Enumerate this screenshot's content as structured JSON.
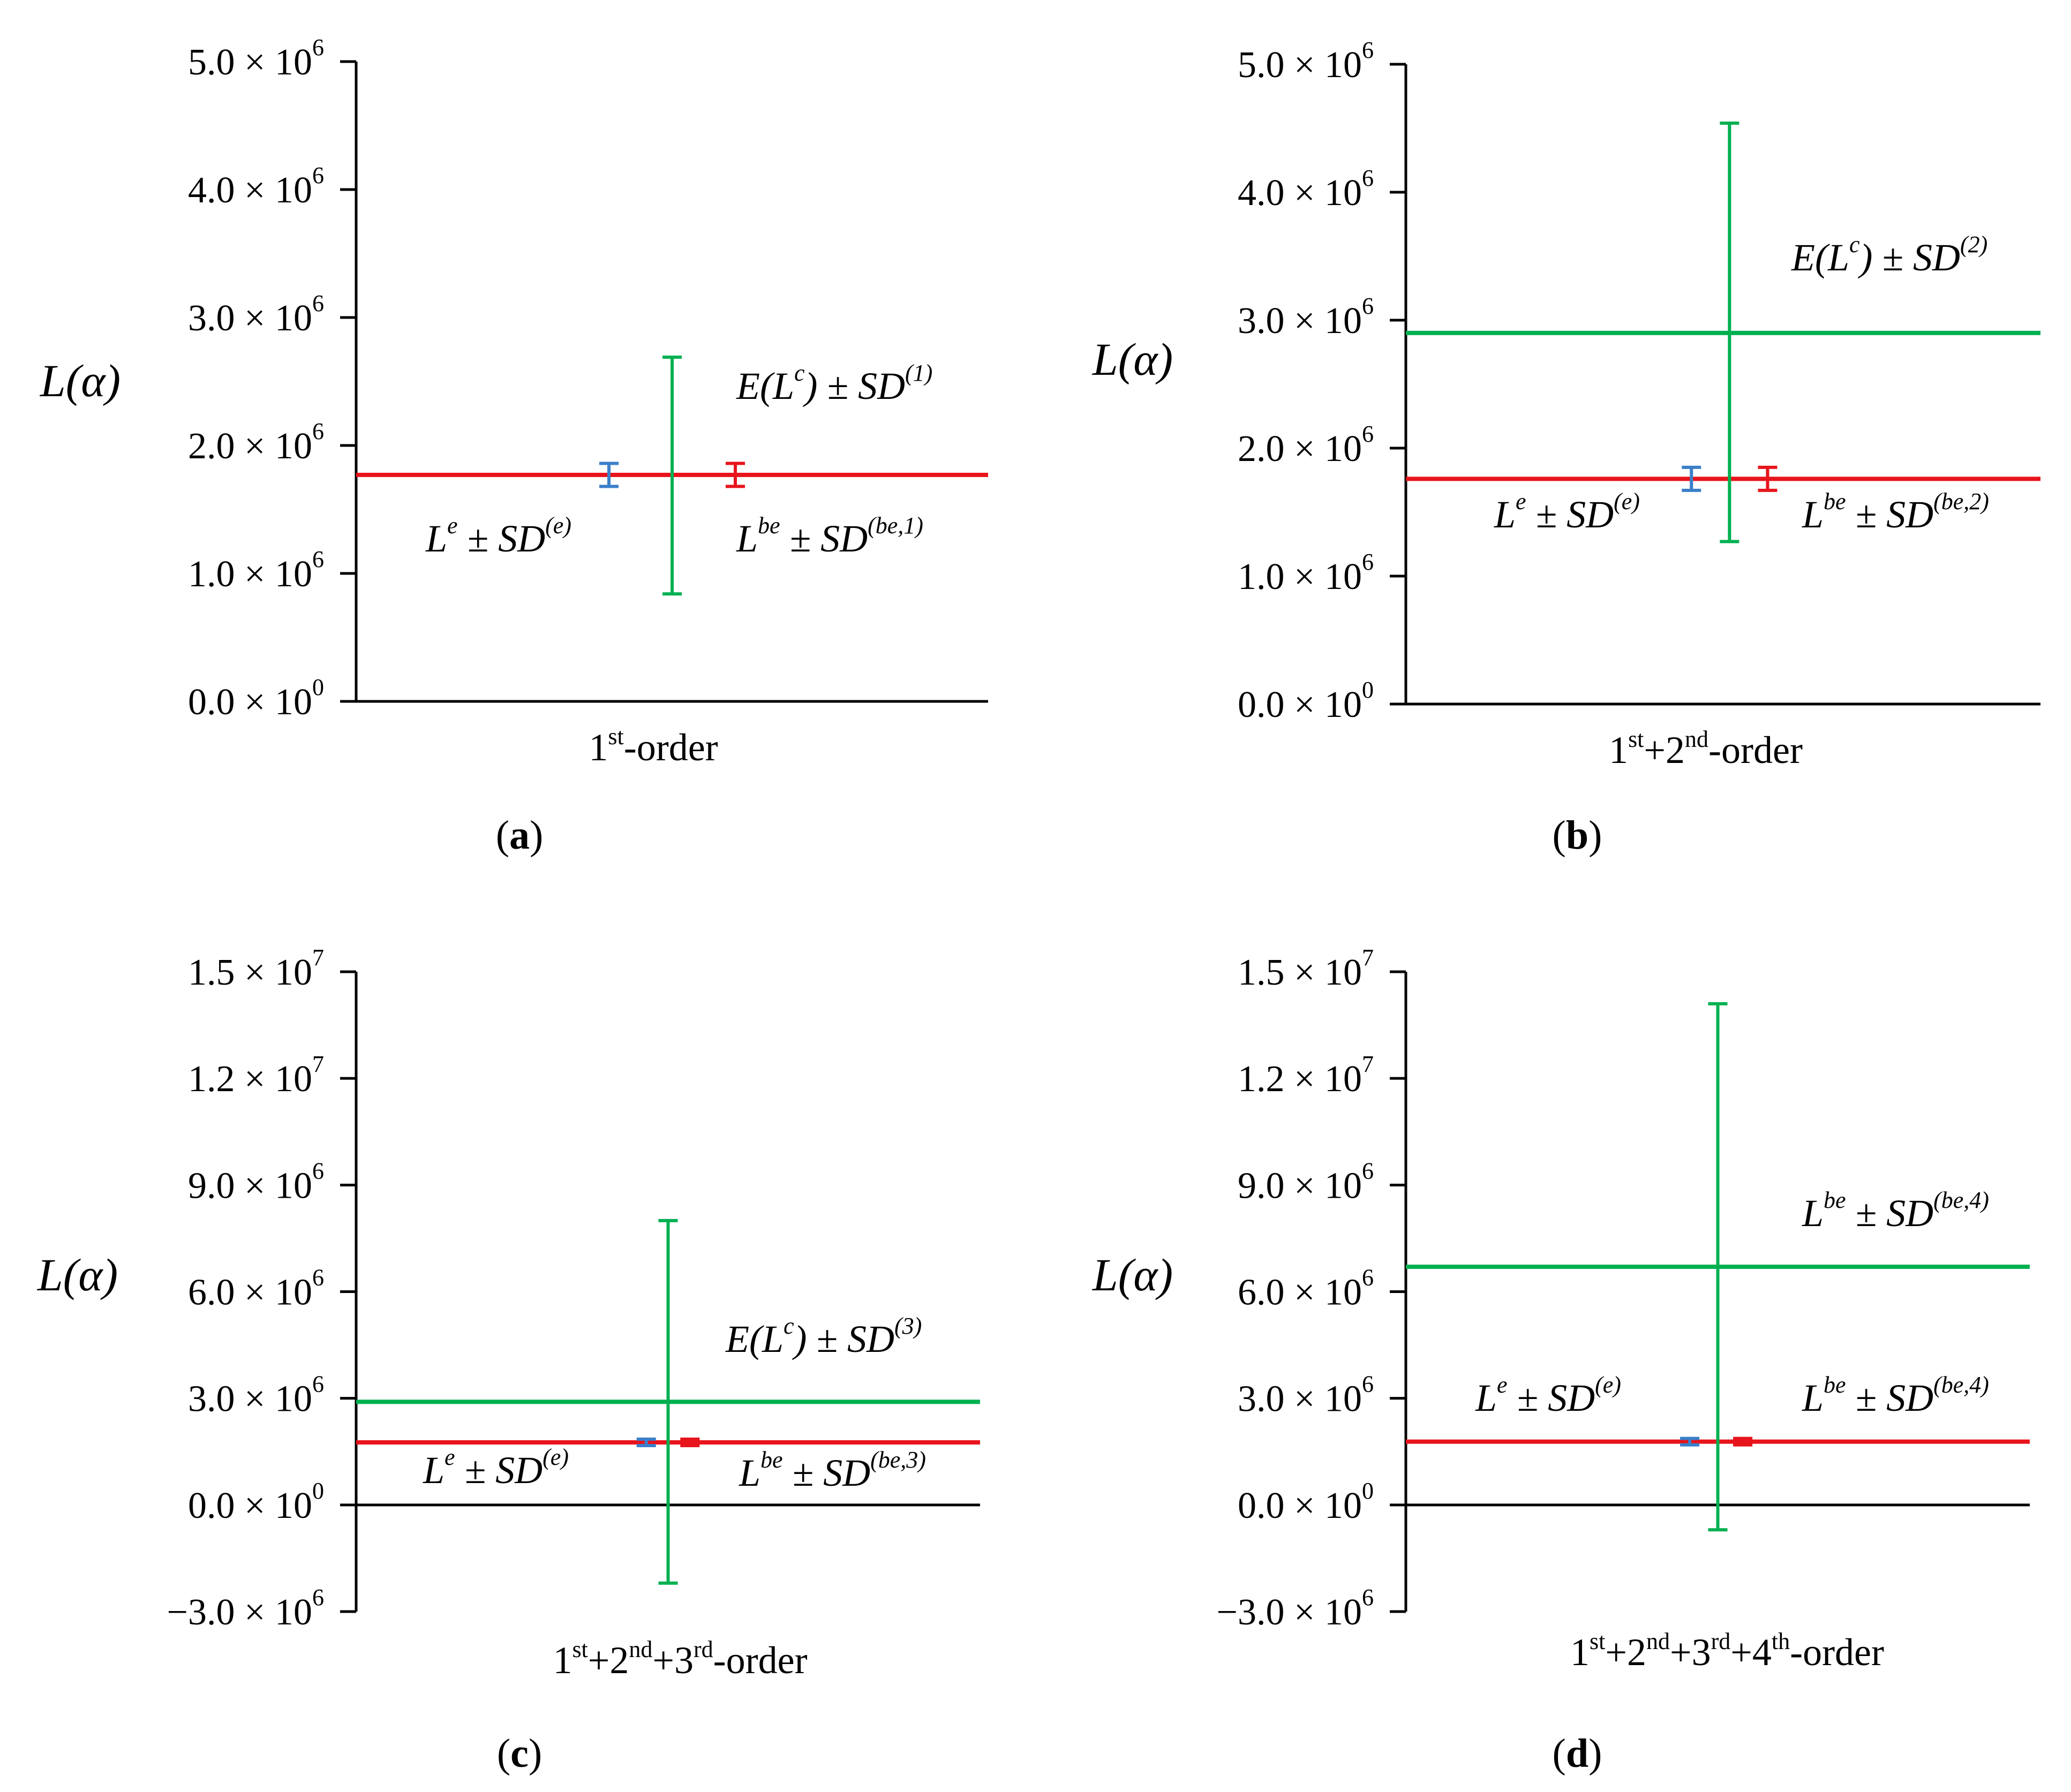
{
  "chart_data": [
    {
      "type": "errorbar",
      "panel_label": "(a)",
      "ylabel": "L(α)",
      "xlabel": "1st-order",
      "xlabel_parts": [
        [
          "1",
          ""
        ],
        [
          "st",
          "sup"
        ],
        [
          "-order",
          ""
        ]
      ],
      "ylim": [
        0,
        5000000
      ],
      "yticks": [
        {
          "value": 0,
          "mant": "0.0 × 10",
          "exp": "0"
        },
        {
          "value": 1000000,
          "mant": "1.0 × 10",
          "exp": "6"
        },
        {
          "value": 2000000,
          "mant": "2.0 × 10",
          "exp": "6"
        },
        {
          "value": 3000000,
          "mant": "3.0 × 10",
          "exp": "6"
        },
        {
          "value": 4000000,
          "mant": "4.0 × 10",
          "exp": "6"
        },
        {
          "value": 5000000,
          "mant": "5.0 × 10",
          "exp": "6"
        }
      ],
      "lines": [
        {
          "name": "E(L^c) ± SD^(1)",
          "color": "#00b050",
          "value": 1760000,
          "draw_line": false
        },
        {
          "name": "L^be ± SD^(be,1)",
          "color": "#e8141c",
          "value": 1770000,
          "draw_line": true
        }
      ],
      "errorbars": [
        {
          "name": "L^e ± SD^(e)",
          "color": "#3a7fc9",
          "mean": 1770000,
          "low": 1680000,
          "high": 1860000,
          "pos": 0.4
        },
        {
          "name": "E(L^c) ± SD^(1)",
          "color": "#00b050",
          "mean": 1760000,
          "low": 840000,
          "high": 2690000,
          "pos": 0.5
        },
        {
          "name": "L^be ± SD^(be,1)",
          "color": "#e8141c",
          "mean": 1770000,
          "low": 1680000,
          "high": 1860000,
          "pos": 0.6
        }
      ],
      "annotations": [
        {
          "text": "E(L^c) ± SD^(1)",
          "base": "E(L",
          "sup1": "c",
          "mid": ") ± SD",
          "sup2": "(1)"
        },
        {
          "text": "L^e ± SD^(e)",
          "base": "L",
          "sup1": "e",
          "mid": " ± SD",
          "sup2": "(e)"
        },
        {
          "text": "L^be ± SD^(be,1)",
          "base": "L",
          "sup1": "be",
          "mid": " ± SD",
          "sup2": "(be,1)"
        }
      ]
    },
    {
      "type": "errorbar",
      "panel_label": "(b)",
      "ylabel": "L(α)",
      "xlabel": "1st+2nd-order",
      "xlabel_parts": [
        [
          "1",
          ""
        ],
        [
          "st",
          "sup"
        ],
        [
          "+2",
          ""
        ],
        [
          "nd",
          "sup"
        ],
        [
          "-order",
          ""
        ]
      ],
      "ylim": [
        0,
        5000000
      ],
      "yticks": [
        {
          "value": 0,
          "mant": "0.0 × 10",
          "exp": "0"
        },
        {
          "value": 1000000,
          "mant": "1.0 × 10",
          "exp": "6"
        },
        {
          "value": 2000000,
          "mant": "2.0 × 10",
          "exp": "6"
        },
        {
          "value": 3000000,
          "mant": "3.0 × 10",
          "exp": "6"
        },
        {
          "value": 4000000,
          "mant": "4.0 × 10",
          "exp": "6"
        },
        {
          "value": 5000000,
          "mant": "5.0 × 10",
          "exp": "6"
        }
      ],
      "lines": [
        {
          "name": "E(L^c) ± SD^(2)",
          "color": "#00b050",
          "value": 2900000,
          "draw_line": true
        },
        {
          "name": "L^be ± SD^(be,2)",
          "color": "#e8141c",
          "value": 1760000,
          "draw_line": true
        }
      ],
      "errorbars": [
        {
          "name": "L^e ± SD^(e)",
          "color": "#3a7fc9",
          "mean": 1760000,
          "low": 1670000,
          "high": 1850000,
          "pos": 0.45
        },
        {
          "name": "E(L^c) ± SD^(2)",
          "color": "#00b050",
          "mean": 2900000,
          "low": 1270000,
          "high": 4540000,
          "pos": 0.51
        },
        {
          "name": "L^be ± SD^(be,2)",
          "color": "#e8141c",
          "mean": 1760000,
          "low": 1670000,
          "high": 1850000,
          "pos": 0.57
        }
      ],
      "annotations": [
        {
          "text": "E(L^c) ± SD^(2)",
          "base": "E(L",
          "sup1": "c",
          "mid": ") ± SD",
          "sup2": "(2)"
        },
        {
          "text": "L^e ± SD^(e)",
          "base": "L",
          "sup1": "e",
          "mid": " ± SD",
          "sup2": "(e)"
        },
        {
          "text": "L^be ± SD^(be,2)",
          "base": "L",
          "sup1": "be",
          "mid": " ± SD",
          "sup2": "(be,2)"
        }
      ]
    },
    {
      "type": "errorbar",
      "panel_label": "(c)",
      "ylabel": "L(α)",
      "xlabel": "1st+2nd+3rd-order",
      "xlabel_parts": [
        [
          "1",
          ""
        ],
        [
          "st",
          "sup"
        ],
        [
          "+2",
          ""
        ],
        [
          "nd",
          "sup"
        ],
        [
          "+3",
          ""
        ],
        [
          "rd",
          "sup"
        ],
        [
          "-order",
          ""
        ]
      ],
      "ylim": [
        -3000000,
        15000000
      ],
      "yticks": [
        {
          "value": -3000000,
          "mant": "−3.0 × 10",
          "exp": "6"
        },
        {
          "value": 0,
          "mant": "0.0 × 10",
          "exp": "0"
        },
        {
          "value": 3000000,
          "mant": "3.0 × 10",
          "exp": "6"
        },
        {
          "value": 6000000,
          "mant": "6.0 × 10",
          "exp": "6"
        },
        {
          "value": 9000000,
          "mant": "9.0 × 10",
          "exp": "6"
        },
        {
          "value": 12000000,
          "mant": "1.2 × 10",
          "exp": "7"
        },
        {
          "value": 15000000,
          "mant": "1.5 × 10",
          "exp": "7"
        }
      ],
      "lines": [
        {
          "name": "E(L^c) ± SD^(3)",
          "color": "#00b050",
          "value": 2900000,
          "draw_line": true
        },
        {
          "name": "L^be ± SD^(be,3)",
          "color": "#e8141c",
          "value": 1760000,
          "draw_line": true
        }
      ],
      "errorbars": [
        {
          "name": "L^e ± SD^(e)",
          "color": "#3a7fc9",
          "mean": 1760000,
          "low": 1670000,
          "high": 1850000,
          "pos": 0.465
        },
        {
          "name": "E(L^c) ± SD^(3)",
          "color": "#00b050",
          "mean": 2900000,
          "low": -2200000,
          "high": 8000000,
          "pos": 0.5
        },
        {
          "name": "L^be ± SD^(be,3)",
          "color": "#e8141c",
          "mean": 1760000,
          "low": 1670000,
          "high": 1850000,
          "pos": 0.535
        }
      ],
      "annotations": [
        {
          "text": "E(L^c) ± SD^(3)",
          "base": "E(L",
          "sup1": "c",
          "mid": ") ± SD",
          "sup2": "(3)"
        },
        {
          "text": "L^e ± SD^(e)",
          "base": "L",
          "sup1": "e",
          "mid": " ± SD",
          "sup2": "(e)"
        },
        {
          "text": "L^be ± SD^(be,3)",
          "base": "L",
          "sup1": "be",
          "mid": " ± SD",
          "sup2": "(be,3)"
        }
      ]
    },
    {
      "type": "errorbar",
      "panel_label": "(d)",
      "ylabel": "L(α)",
      "xlabel": "1st+2nd+3rd+4th-order",
      "xlabel_parts": [
        [
          "1",
          ""
        ],
        [
          "st",
          "sup"
        ],
        [
          "+2",
          ""
        ],
        [
          "nd",
          "sup"
        ],
        [
          "+3",
          ""
        ],
        [
          "rd",
          "sup"
        ],
        [
          "+4",
          ""
        ],
        [
          "th",
          "sup"
        ],
        [
          "-order",
          ""
        ]
      ],
      "ylim": [
        -3000000,
        15000000
      ],
      "yticks": [
        {
          "value": -3000000,
          "mant": "−3.0 × 10",
          "exp": "6"
        },
        {
          "value": 0,
          "mant": "0.0 × 10",
          "exp": "0"
        },
        {
          "value": 3000000,
          "mant": "3.0 × 10",
          "exp": "6"
        },
        {
          "value": 6000000,
          "mant": "6.0 × 10",
          "exp": "6"
        },
        {
          "value": 9000000,
          "mant": "9.0 × 10",
          "exp": "6"
        },
        {
          "value": 12000000,
          "mant": "1.2 × 10",
          "exp": "7"
        },
        {
          "value": 15000000,
          "mant": "1.5 × 10",
          "exp": "7"
        }
      ],
      "lines": [
        {
          "name": "L^be ± SD^(be,4) (upper)",
          "color": "#00b050",
          "value": 6700000,
          "draw_line": true
        },
        {
          "name": "L^be ± SD^(be,4)",
          "color": "#e8141c",
          "value": 1780000,
          "draw_line": true
        }
      ],
      "errorbars": [
        {
          "name": "L^e ± SD^(e)",
          "color": "#3a7fc9",
          "mean": 1780000,
          "low": 1690000,
          "high": 1870000,
          "pos": 0.455
        },
        {
          "name": "green",
          "color": "#00b050",
          "mean": 6700000,
          "low": -700000,
          "high": 14100000,
          "pos": 0.5
        },
        {
          "name": "L^be ± SD^(be,4)",
          "color": "#e8141c",
          "mean": 1780000,
          "low": 1690000,
          "high": 1870000,
          "pos": 0.54
        }
      ],
      "annotations": [
        {
          "text": "L^be ± SD^(be,4)",
          "base": "L",
          "sup1": "be",
          "mid": " ± SD",
          "sup2": "(be,4)"
        },
        {
          "text": "L^e ± SD^(e)",
          "base": "L",
          "sup1": "e",
          "mid": " ± SD",
          "sup2": "(e)"
        },
        {
          "text": "L^be ± SD^(be,4)",
          "base": "L",
          "sup1": "be",
          "mid": " ± SD",
          "sup2": "(be,4)"
        }
      ]
    }
  ]
}
